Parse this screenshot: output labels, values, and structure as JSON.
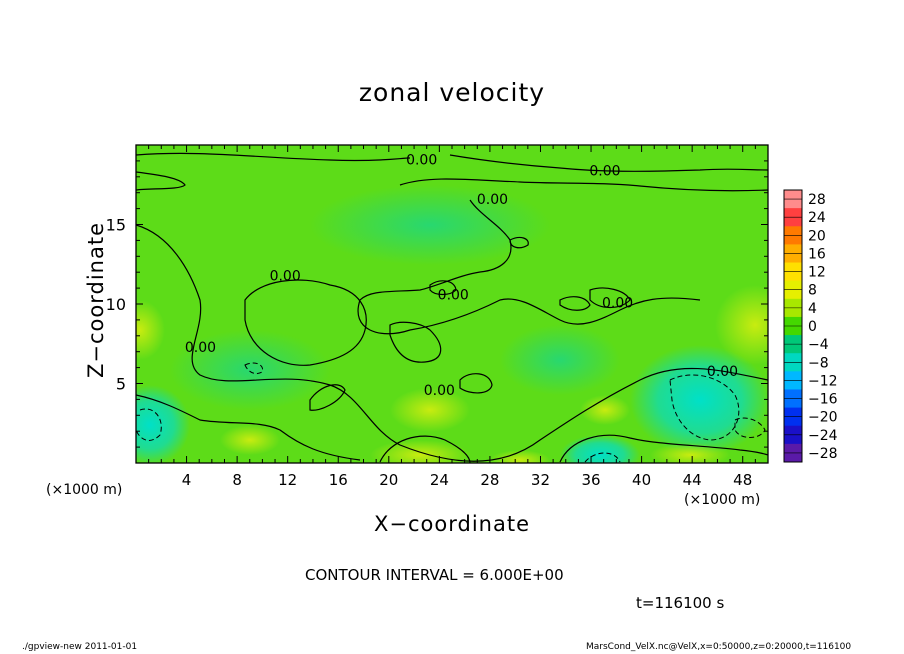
{
  "title": "zonal velocity",
  "chart_data": {
    "type": "heatmap",
    "title": "zonal velocity",
    "xlabel": "X−coordinate",
    "ylabel": "Z−coordinate",
    "x_unit_label": "(×1000 m)",
    "y_unit_label": "(×1000 m)",
    "xlim": [
      0,
      50
    ],
    "ylim": [
      0,
      20
    ],
    "x_ticks": [
      4,
      8,
      12,
      16,
      20,
      24,
      28,
      32,
      36,
      40,
      44,
      48
    ],
    "x_tick_labels": [
      "4",
      "8",
      "12",
      "16",
      "20",
      "24",
      "28",
      "32",
      "36",
      "40",
      "44",
      "48"
    ],
    "y_ticks": [
      5,
      10,
      15
    ],
    "y_tick_labels": [
      "5",
      "10",
      "15"
    ],
    "contour_labels": [
      {
        "text": "0.00",
        "x": 22.6,
        "y": 19.1
      },
      {
        "text": "0.00",
        "x": 37.1,
        "y": 18.4
      },
      {
        "text": "0.00",
        "x": 28.2,
        "y": 16.6
      },
      {
        "text": "0.00",
        "x": 11.8,
        "y": 11.8
      },
      {
        "text": "0.00",
        "x": 25.1,
        "y": 10.6
      },
      {
        "text": "0.00",
        "x": 38.1,
        "y": 10.1
      },
      {
        "text": "0.00",
        "x": 5.1,
        "y": 7.3
      },
      {
        "text": "0.00",
        "x": 24.0,
        "y": 4.6
      },
      {
        "text": "0.00",
        "x": 46.4,
        "y": 5.8
      }
    ],
    "colorbar": {
      "levels": [
        28,
        24,
        20,
        16,
        12,
        8,
        4,
        0,
        -4,
        -8,
        -12,
        -16,
        -20,
        -24,
        -28
      ],
      "labels": [
        "28",
        "24",
        "20",
        "16",
        "12",
        "8",
        "4",
        "0",
        "−4",
        "−8",
        "−12",
        "−16",
        "−20",
        "−24",
        "−28"
      ],
      "colors": [
        "#ff8c8c",
        "#ff4040",
        "#ff7a00",
        "#ffae00",
        "#ffe000",
        "#e6ef00",
        "#a8e800",
        "#44d800",
        "#00c878",
        "#00d8c0",
        "#00b8ff",
        "#0070ff",
        "#0030f0",
        "#1a10c8",
        "#5a1aa8"
      ]
    },
    "contour_interval": "6.000E+00",
    "time_label": "t=116100 s"
  },
  "footer": {
    "contour_text": "CONTOUR INTERVAL = 6.000E+00",
    "time_text": "t=116100 s",
    "program": "./gpview-new  2011-01-01",
    "source": "MarsCond_VelX.nc@VelX,x=0:50000,z=0:20000,t=116100"
  }
}
